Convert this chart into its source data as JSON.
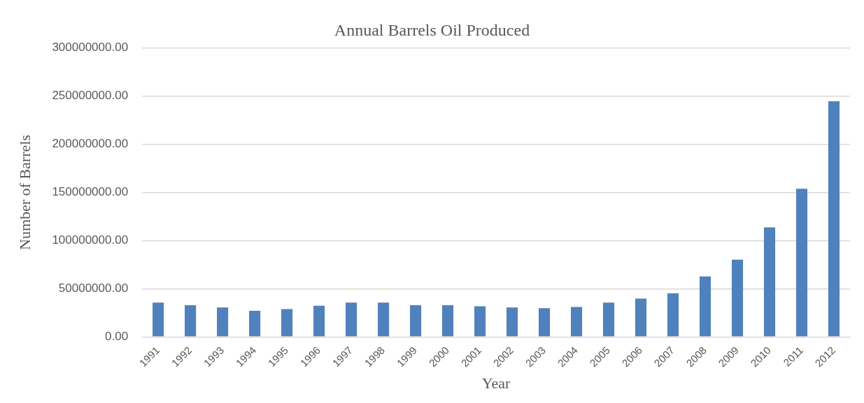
{
  "chart_data": {
    "type": "bar",
    "title": "Annual Barrels Oil Produced",
    "xlabel": "Year",
    "ylabel": "Number of Barrels",
    "categories": [
      "1991",
      "1992",
      "1993",
      "1994",
      "1995",
      "1996",
      "1997",
      "1998",
      "1999",
      "2000",
      "2001",
      "2002",
      "2003",
      "2004",
      "2005",
      "2006",
      "2007",
      "2008",
      "2009",
      "2010",
      "2011",
      "2012"
    ],
    "values": [
      35500000,
      32800000,
      30500000,
      27000000,
      28800000,
      32300000,
      35500000,
      35500000,
      32800000,
      32800000,
      31700000,
      30500000,
      29700000,
      31100000,
      35500000,
      39800000,
      45100000,
      62800000,
      80200000,
      113700000,
      153800000,
      244800000
    ],
    "color": "#4f81bd",
    "ylim": [
      0,
      300000000
    ],
    "yticks": [
      {
        "value": 0,
        "label": "0.00"
      },
      {
        "value": 50000000,
        "label": "50000000.00"
      },
      {
        "value": 100000000,
        "label": "100000000.00"
      },
      {
        "value": 150000000,
        "label": "150000000.00"
      },
      {
        "value": 200000000,
        "label": "200000000.00"
      },
      {
        "value": 250000000,
        "label": "250000000.00"
      },
      {
        "value": 300000000,
        "label": "300000000.00"
      }
    ],
    "grid": "y",
    "legend": false
  }
}
